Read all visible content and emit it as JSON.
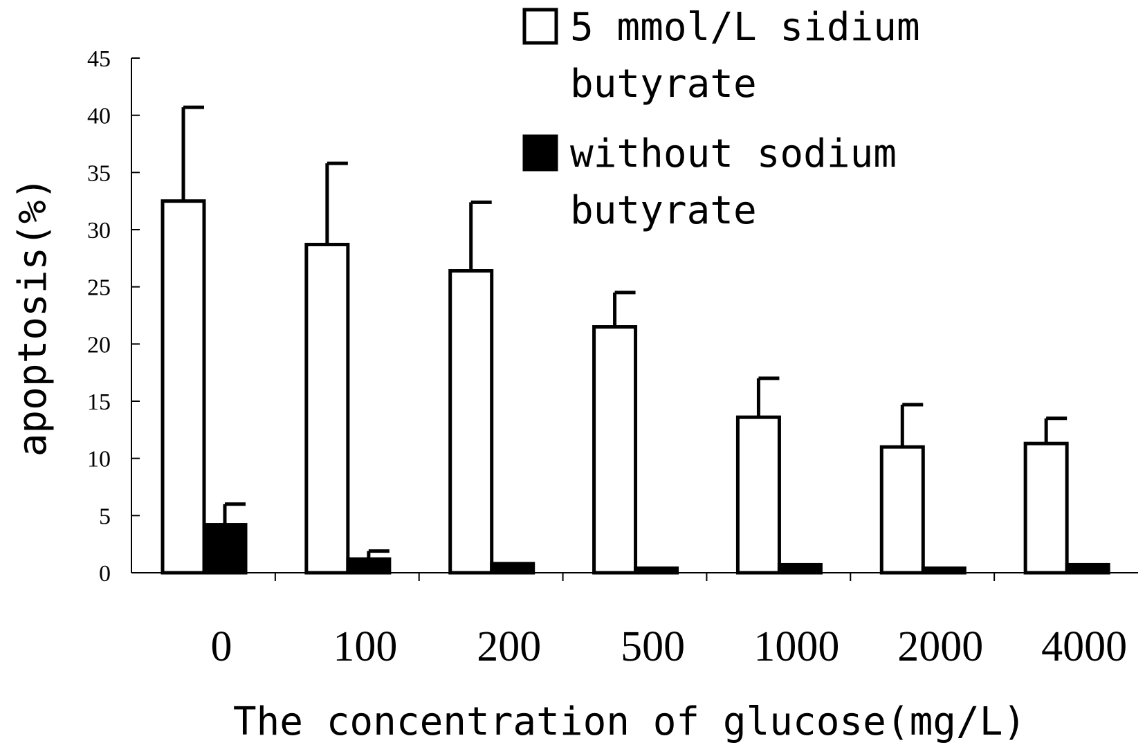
{
  "chart_data": {
    "type": "bar",
    "title": "",
    "xlabel": "The concentration of glucose(mg/L)",
    "ylabel": "apoptosis(%)",
    "ylim": [
      0,
      45
    ],
    "yticks": [
      0,
      5,
      10,
      15,
      20,
      25,
      30,
      35,
      40,
      45
    ],
    "categories": [
      "0",
      "100",
      "200",
      "500",
      "1000",
      "2000",
      "4000"
    ],
    "series": [
      {
        "name": "5 mmol/L sidium butyrate",
        "legend_lines": [
          "5 mmol/L sidium",
          "butyrate"
        ],
        "fill": "#ffffff",
        "values": [
          32.5,
          28.7,
          26.4,
          21.5,
          13.6,
          11.0,
          11.3
        ],
        "errors": [
          8.2,
          7.1,
          6.0,
          3.0,
          3.4,
          3.7,
          2.2
        ]
      },
      {
        "name": "without sodium butyrate",
        "legend_lines": [
          "without sodium",
          "butyrate"
        ],
        "fill": "#000000",
        "values": [
          4.2,
          1.2,
          0.8,
          0.4,
          0.7,
          0.4,
          0.7
        ],
        "errors": [
          1.8,
          0.7,
          0.0,
          0.0,
          0.0,
          0.0,
          0.0
        ]
      }
    ],
    "grid": false,
    "legend": "top-right"
  }
}
